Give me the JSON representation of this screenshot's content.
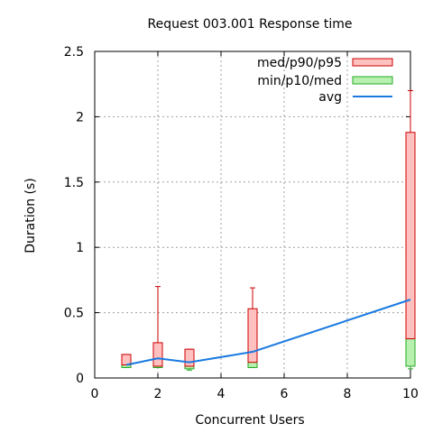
{
  "chart_data": {
    "type": "box",
    "title": "Request 003.001 Response time",
    "xlabel": "Concurrent Users",
    "ylabel": "Duration (s)",
    "xlim": [
      0,
      10
    ],
    "ylim": [
      0,
      2.5
    ],
    "xticks": [
      "0",
      "2",
      "4",
      "6",
      "8",
      "10"
    ],
    "yticks": [
      "0",
      "0.5",
      "1",
      "1.5",
      "2",
      "2.5"
    ],
    "grid": true,
    "legend_position": "top-right",
    "colors": {
      "upper_fill": "#ffc0c0",
      "upper_stroke": "#cc0000",
      "lower_fill": "#b8f0b0",
      "lower_stroke": "#22aa22",
      "avg": "#1a7ae0",
      "grid": "#a0a0a0"
    },
    "series": [
      {
        "name": "med/p90/p95"
      },
      {
        "name": "min/p10/med"
      },
      {
        "name": "avg"
      }
    ],
    "boxes": [
      {
        "x": 1,
        "min": 0.08,
        "p10": 0.08,
        "med": 0.1,
        "p90": 0.18,
        "p95": 0.18,
        "avg": 0.1
      },
      {
        "x": 2,
        "min": 0.08,
        "p10": 0.08,
        "med": 0.09,
        "p90": 0.27,
        "p95": 0.7,
        "avg": 0.15
      },
      {
        "x": 3,
        "min": 0.06,
        "p10": 0.07,
        "med": 0.09,
        "p90": 0.22,
        "p95": 0.22,
        "avg": 0.12
      },
      {
        "x": 5,
        "min": 0.08,
        "p10": 0.08,
        "med": 0.12,
        "p90": 0.53,
        "p95": 0.69,
        "avg": 0.2
      },
      {
        "x": 10,
        "min": 0.07,
        "p10": 0.09,
        "med": 0.3,
        "p90": 1.88,
        "p95": 2.2,
        "avg": 0.6
      }
    ]
  }
}
